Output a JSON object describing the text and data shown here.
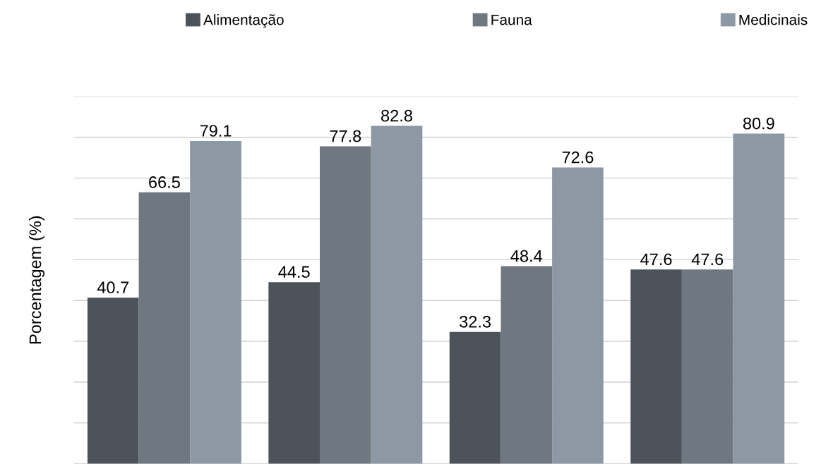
{
  "chart_data": {
    "type": "bar",
    "ylabel": "Porcentagem (%)",
    "categories": [
      null,
      null,
      null,
      null
    ],
    "series": [
      {
        "name": "Alimentação",
        "color": "#4d535b",
        "values": [
          40.7,
          44.5,
          32.3,
          47.6
        ]
      },
      {
        "name": "Fauna",
        "color": "#6f7780",
        "values": [
          66.5,
          77.8,
          48.4,
          47.6
        ]
      },
      {
        "name": "Medicinais",
        "color": "#8c98a3",
        "values": [
          79.1,
          82.8,
          72.6,
          80.9
        ]
      }
    ],
    "ylim": [
      0,
      90
    ],
    "yticks": [
      {
        "value": 0,
        "label": null
      },
      {
        "value": 10,
        "label": null
      },
      {
        "value": 20,
        "label": null
      },
      {
        "value": 30,
        "label": null
      },
      {
        "value": 40,
        "label": null
      },
      {
        "value": 50,
        "label": null
      },
      {
        "value": 60,
        "label": null
      },
      {
        "value": 70,
        "label": null
      },
      {
        "value": 80,
        "label": null
      },
      {
        "value": 90,
        "label": null
      }
    ],
    "tick_labels": false,
    "grid": "y",
    "legend": "top",
    "data_labels": true
  }
}
